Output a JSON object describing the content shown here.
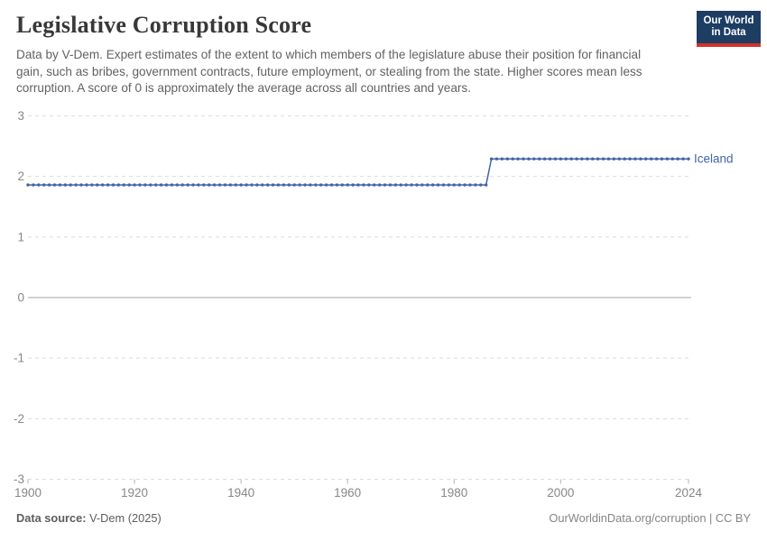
{
  "header": {
    "title": "Legislative Corruption Score",
    "subtitle": "Data by V-Dem. Expert estimates of the extent to which members of the legislature abuse their position for financial gain, such as bribes, government contracts, future employment, or stealing from the state. Higher scores mean less corruption. A score of 0 is approximately the average across all countries and years.",
    "logo": {
      "line1": "Our World",
      "line2": "in Data"
    }
  },
  "chart_data": {
    "type": "line",
    "title": "Legislative Corruption Score",
    "xlabel": "",
    "ylabel": "",
    "x": {
      "min": 1900,
      "max": 2024,
      "ticks": [
        1900,
        1920,
        1940,
        1960,
        1980,
        2000,
        2024
      ]
    },
    "y": {
      "min": -3,
      "max": 3,
      "ticks": [
        3,
        2,
        1,
        0,
        -1,
        -2,
        -3
      ],
      "zero_line_at": 0
    },
    "grid": true,
    "legend_position": "end-of-line",
    "series": [
      {
        "name": "Iceland",
        "color": "#4264a8",
        "step_segments": [
          {
            "from_year": 1900,
            "to_year": 1986,
            "value": 1.86
          },
          {
            "from_year": 1987,
            "to_year": 2024,
            "value": 2.29
          }
        ]
      }
    ]
  },
  "footer": {
    "source_label": "Data source:",
    "source_value": "V-Dem (2025)",
    "credit": "OurWorldinData.org/corruption | CC BY"
  },
  "colors": {
    "grid_line": "#dcdcdc",
    "zero_line": "#a3a3a3",
    "axis_tick": "#b3b3b3",
    "axis_label": "#878787",
    "logo_bg": "#1d3d63",
    "logo_accent": "#d0342c",
    "series_accent": "#4264a8"
  }
}
